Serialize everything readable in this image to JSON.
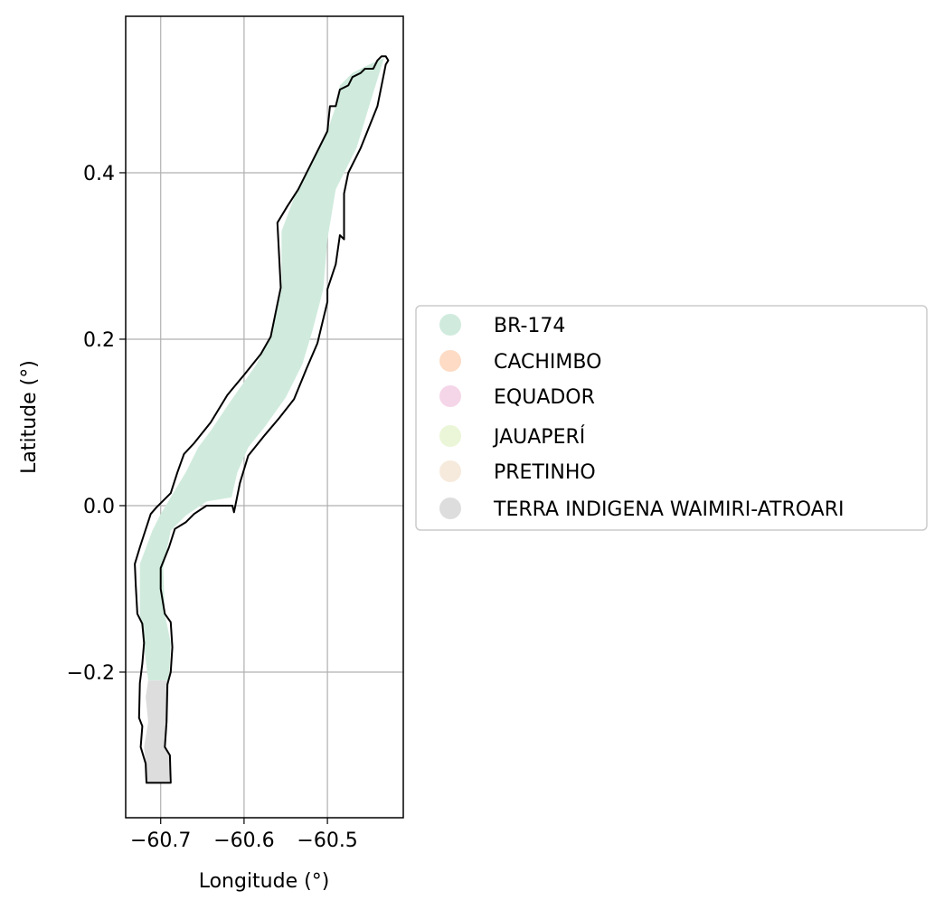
{
  "chart_data": {
    "type": "map",
    "xlabel": "Longitude (°)",
    "ylabel": "Latitude (°)",
    "xlim": [
      -60.742,
      -60.409
    ],
    "ylim": [
      -0.375,
      0.588
    ],
    "xticks": [
      -60.7,
      -60.6,
      -60.5
    ],
    "xtick_labels": [
      "−60.7",
      "−60.6",
      "−60.5"
    ],
    "yticks": [
      -0.2,
      0.0,
      0.2,
      0.4
    ],
    "ytick_labels": [
      "−0.2",
      "0.0",
      "0.2",
      "0.4"
    ],
    "grid": true,
    "legend_position": "center-right, outside plot",
    "legend": [
      {
        "label": "BR-174",
        "color": "#d0ebdd"
      },
      {
        "label": "CACHIMBO",
        "color": "#fddbc4"
      },
      {
        "label": "EQUADOR",
        "color": "#f5d6e8"
      },
      {
        "label": "JAUAPERÍ",
        "color": "#eaf6d7"
      },
      {
        "label": "PRETINHO",
        "color": "#f6eadc"
      },
      {
        "label": "TERRA INDIGENA WAIMIRI-ATROARI",
        "color": "#dddddd"
      }
    ],
    "regions": [
      {
        "name": "BR-174",
        "color": "#d0ebdd",
        "polygon": [
          [
            -60.432,
            0.538
          ],
          [
            -60.45,
            0.53
          ],
          [
            -60.47,
            0.52
          ],
          [
            -60.485,
            0.505
          ],
          [
            -60.49,
            0.48
          ],
          [
            -60.5,
            0.45
          ],
          [
            -60.52,
            0.41
          ],
          [
            -60.54,
            0.37
          ],
          [
            -60.555,
            0.33
          ],
          [
            -60.555,
            0.26
          ],
          [
            -60.57,
            0.2
          ],
          [
            -60.585,
            0.17
          ],
          [
            -60.62,
            0.12
          ],
          [
            -60.64,
            0.09
          ],
          [
            -60.655,
            0.07
          ],
          [
            -60.67,
            0.04
          ],
          [
            -60.685,
            0.015
          ],
          [
            -60.7,
            -0.01
          ],
          [
            -60.71,
            -0.03
          ],
          [
            -60.725,
            -0.07
          ],
          [
            -60.725,
            -0.13
          ],
          [
            -60.72,
            -0.17
          ],
          [
            -60.715,
            -0.21
          ],
          [
            -60.69,
            -0.21
          ],
          [
            -60.688,
            -0.165
          ],
          [
            -60.695,
            -0.13
          ],
          [
            -60.697,
            -0.075
          ],
          [
            -60.688,
            -0.03
          ],
          [
            -60.67,
            -0.012
          ],
          [
            -60.645,
            0.005
          ],
          [
            -60.615,
            0.01
          ],
          [
            -60.608,
            0.04
          ],
          [
            -60.595,
            0.07
          ],
          [
            -60.575,
            0.095
          ],
          [
            -60.55,
            0.13
          ],
          [
            -60.53,
            0.17
          ],
          [
            -60.518,
            0.21
          ],
          [
            -60.505,
            0.26
          ],
          [
            -60.5,
            0.32
          ],
          [
            -60.49,
            0.38
          ],
          [
            -60.465,
            0.43
          ],
          [
            -60.45,
            0.48
          ]
        ]
      },
      {
        "name": "TERRA INDIGENA WAIMIRI-ATROARI",
        "color": "#dddddd",
        "polygon": [
          [
            -60.715,
            -0.21
          ],
          [
            -60.69,
            -0.21
          ],
          [
            -60.692,
            -0.26
          ],
          [
            -60.695,
            -0.29
          ],
          [
            -60.688,
            -0.3
          ],
          [
            -60.69,
            -0.333
          ],
          [
            -60.718,
            -0.333
          ],
          [
            -60.718,
            -0.31
          ],
          [
            -60.72,
            -0.29
          ],
          [
            -60.715,
            -0.26
          ],
          [
            -60.718,
            -0.23
          ]
        ]
      }
    ],
    "boundary": [
      [
        -60.427,
        0.535
      ],
      [
        -60.43,
        0.54
      ],
      [
        -60.435,
        0.54
      ],
      [
        -60.44,
        0.535
      ],
      [
        -60.445,
        0.525
      ],
      [
        -60.455,
        0.525
      ],
      [
        -60.46,
        0.52
      ],
      [
        -60.47,
        0.515
      ],
      [
        -60.475,
        0.505
      ],
      [
        -60.485,
        0.5
      ],
      [
        -60.49,
        0.48
      ],
      [
        -60.497,
        0.48
      ],
      [
        -60.5,
        0.45
      ],
      [
        -60.52,
        0.41
      ],
      [
        -60.535,
        0.38
      ],
      [
        -60.548,
        0.36
      ],
      [
        -60.56,
        0.34
      ],
      [
        -60.556,
        0.262
      ],
      [
        -60.568,
        0.203
      ],
      [
        -60.58,
        0.182
      ],
      [
        -60.6,
        0.157
      ],
      [
        -60.62,
        0.133
      ],
      [
        -60.64,
        0.1
      ],
      [
        -60.66,
        0.075
      ],
      [
        -60.672,
        0.062
      ],
      [
        -60.68,
        0.04
      ],
      [
        -60.688,
        0.015
      ],
      [
        -60.705,
        -0.002
      ],
      [
        -60.712,
        -0.01
      ],
      [
        -60.725,
        -0.05
      ],
      [
        -60.731,
        -0.07
      ],
      [
        -60.73,
        -0.095
      ],
      [
        -60.728,
        -0.13
      ],
      [
        -60.722,
        -0.142
      ],
      [
        -60.72,
        -0.165
      ],
      [
        -60.722,
        -0.19
      ],
      [
        -60.725,
        -0.213
      ],
      [
        -60.726,
        -0.255
      ],
      [
        -60.722,
        -0.265
      ],
      [
        -60.724,
        -0.29
      ],
      [
        -60.718,
        -0.31
      ],
      [
        -60.717,
        -0.333
      ],
      [
        -60.688,
        -0.333
      ],
      [
        -60.689,
        -0.3
      ],
      [
        -60.695,
        -0.29
      ],
      [
        -60.693,
        -0.26
      ],
      [
        -60.692,
        -0.215
      ],
      [
        -60.688,
        -0.2
      ],
      [
        -60.686,
        -0.17
      ],
      [
        -60.688,
        -0.14
      ],
      [
        -60.695,
        -0.13
      ],
      [
        -60.7,
        -0.1
      ],
      [
        -60.7,
        -0.075
      ],
      [
        -60.69,
        -0.05
      ],
      [
        -60.683,
        -0.028
      ],
      [
        -60.67,
        -0.02
      ],
      [
        -60.66,
        -0.01
      ],
      [
        -60.645,
        0.0
      ],
      [
        -60.628,
        0.0
      ],
      [
        -60.614,
        0.0
      ],
      [
        -60.612,
        -0.008
      ],
      [
        -60.605,
        0.027
      ],
      [
        -60.595,
        0.06
      ],
      [
        -60.575,
        0.085
      ],
      [
        -60.558,
        0.105
      ],
      [
        -60.54,
        0.128
      ],
      [
        -60.525,
        0.165
      ],
      [
        -60.512,
        0.195
      ],
      [
        -60.5,
        0.245
      ],
      [
        -60.5,
        0.26
      ],
      [
        -60.49,
        0.29
      ],
      [
        -60.485,
        0.325
      ],
      [
        -60.48,
        0.32
      ],
      [
        -60.48,
        0.375
      ],
      [
        -60.475,
        0.4
      ],
      [
        -60.46,
        0.43
      ],
      [
        -60.44,
        0.48
      ],
      [
        -60.43,
        0.53
      ]
    ]
  }
}
